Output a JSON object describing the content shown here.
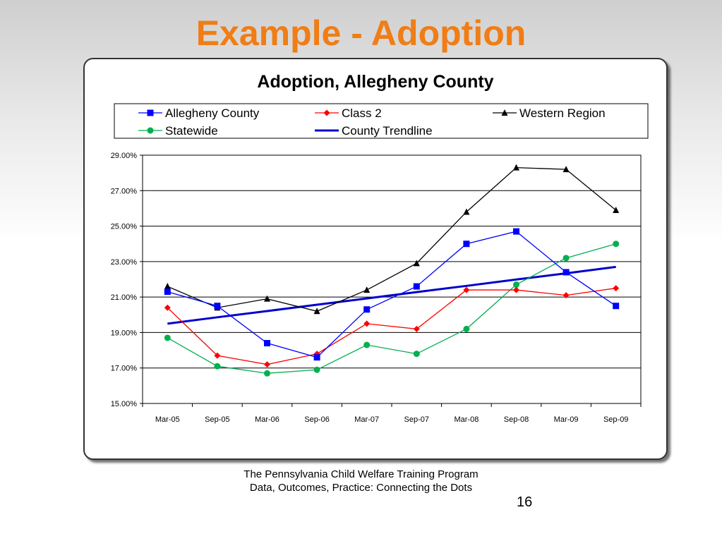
{
  "slide": {
    "title": "Example - Adoption",
    "footer_line1": "The Pennsylvania Child Welfare Training Program",
    "footer_line2": "Data, Outcomes, Practice: Connecting the Dots",
    "page_number": "16"
  },
  "chart_data": {
    "type": "line",
    "title": "Adoption, Allegheny County",
    "categories": [
      "Mar-05",
      "Sep-05",
      "Mar-06",
      "Sep-06",
      "Mar-07",
      "Sep-07",
      "Mar-08",
      "Sep-08",
      "Mar-09",
      "Sep-09"
    ],
    "y_ticks": [
      "15.00%",
      "17.00%",
      "19.00%",
      "21.00%",
      "23.00%",
      "25.00%",
      "27.00%",
      "29.00%"
    ],
    "ylim": [
      15,
      29
    ],
    "grid": true,
    "legend_position": "top",
    "series": [
      {
        "name": "Allegheny County",
        "color": "#0000ff",
        "marker": "square",
        "values": [
          21.3,
          20.5,
          18.4,
          17.6,
          20.3,
          21.6,
          24.0,
          24.7,
          22.4,
          20.5
        ]
      },
      {
        "name": "Class 2",
        "color": "#ff0000",
        "marker": "diamond",
        "values": [
          20.4,
          17.7,
          17.2,
          17.8,
          19.5,
          19.2,
          21.4,
          21.4,
          21.1,
          21.5
        ]
      },
      {
        "name": "Western Region",
        "color": "#000000",
        "marker": "triangle",
        "values": [
          21.6,
          20.4,
          20.9,
          20.2,
          21.4,
          22.9,
          25.8,
          28.3,
          28.2,
          25.9
        ]
      },
      {
        "name": "Statewide",
        "color": "#00b050",
        "marker": "circle",
        "values": [
          18.7,
          17.1,
          16.7,
          16.9,
          18.3,
          17.8,
          19.2,
          21.7,
          23.2,
          24.0
        ]
      },
      {
        "name": "County Trendline",
        "color": "#0000cc",
        "marker": "none",
        "values": [
          19.5,
          19.86,
          20.21,
          20.57,
          20.92,
          21.28,
          21.63,
          21.99,
          22.34,
          22.7
        ]
      }
    ]
  }
}
